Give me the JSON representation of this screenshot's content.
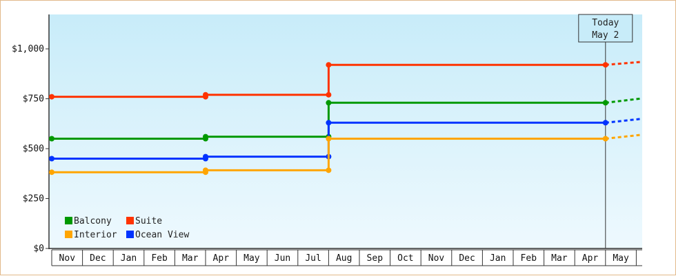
{
  "chart_data": {
    "type": "line",
    "step": true,
    "title": "",
    "xlabel": "",
    "ylabel": "",
    "ylim": [
      0,
      1175
    ],
    "y_ticks": [
      0,
      250,
      500,
      750,
      1000
    ],
    "y_tick_labels": [
      "$0",
      "$250",
      "$500",
      "$750",
      "$1,000"
    ],
    "x_categories": [
      "Nov",
      "Dec",
      "Jan",
      "Feb",
      "Mar",
      "Apr",
      "May",
      "Jun",
      "Jul",
      "Aug",
      "Sep",
      "Oct",
      "Nov",
      "Dec",
      "Jan",
      "Feb",
      "Mar",
      "Apr",
      "May"
    ],
    "grid": false,
    "background": [
      "#c8ecf9",
      "#eef9fe"
    ],
    "legend": {
      "placement": "bottom-left",
      "columns": 2,
      "order": [
        "Balcony",
        "Suite",
        "Interior",
        "Ocean View"
      ]
    },
    "today_marker": {
      "line1": "Today",
      "line2": "May 2",
      "x": 18.0
    },
    "series": [
      {
        "name": "Suite",
        "color": "#ff3300",
        "points": [
          [
            0.0,
            760
          ],
          [
            5.0,
            760
          ],
          [
            5.0,
            770
          ],
          [
            9.0,
            770
          ],
          [
            9.0,
            920
          ],
          [
            18.0,
            920
          ]
        ],
        "forecast": [
          [
            18.0,
            920
          ],
          [
            19.2,
            935
          ]
        ]
      },
      {
        "name": "Balcony",
        "color": "#009900",
        "points": [
          [
            0.0,
            550
          ],
          [
            5.0,
            550
          ],
          [
            5.0,
            560
          ],
          [
            9.0,
            560
          ],
          [
            9.0,
            730
          ],
          [
            18.0,
            730
          ]
        ],
        "forecast": [
          [
            18.0,
            730
          ],
          [
            19.2,
            752
          ]
        ]
      },
      {
        "name": "Ocean View",
        "color": "#0033ff",
        "points": [
          [
            0.0,
            450
          ],
          [
            5.0,
            450
          ],
          [
            5.0,
            460
          ],
          [
            9.0,
            460
          ],
          [
            9.0,
            630
          ],
          [
            18.0,
            630
          ]
        ],
        "forecast": [
          [
            18.0,
            630
          ],
          [
            19.2,
            650
          ]
        ]
      },
      {
        "name": "Interior",
        "color": "#ffa500",
        "points": [
          [
            0.0,
            382
          ],
          [
            5.0,
            382
          ],
          [
            5.0,
            392
          ],
          [
            9.0,
            392
          ],
          [
            9.0,
            550
          ],
          [
            18.0,
            550
          ]
        ],
        "forecast": [
          [
            18.0,
            550
          ],
          [
            19.2,
            570
          ]
        ]
      }
    ]
  }
}
